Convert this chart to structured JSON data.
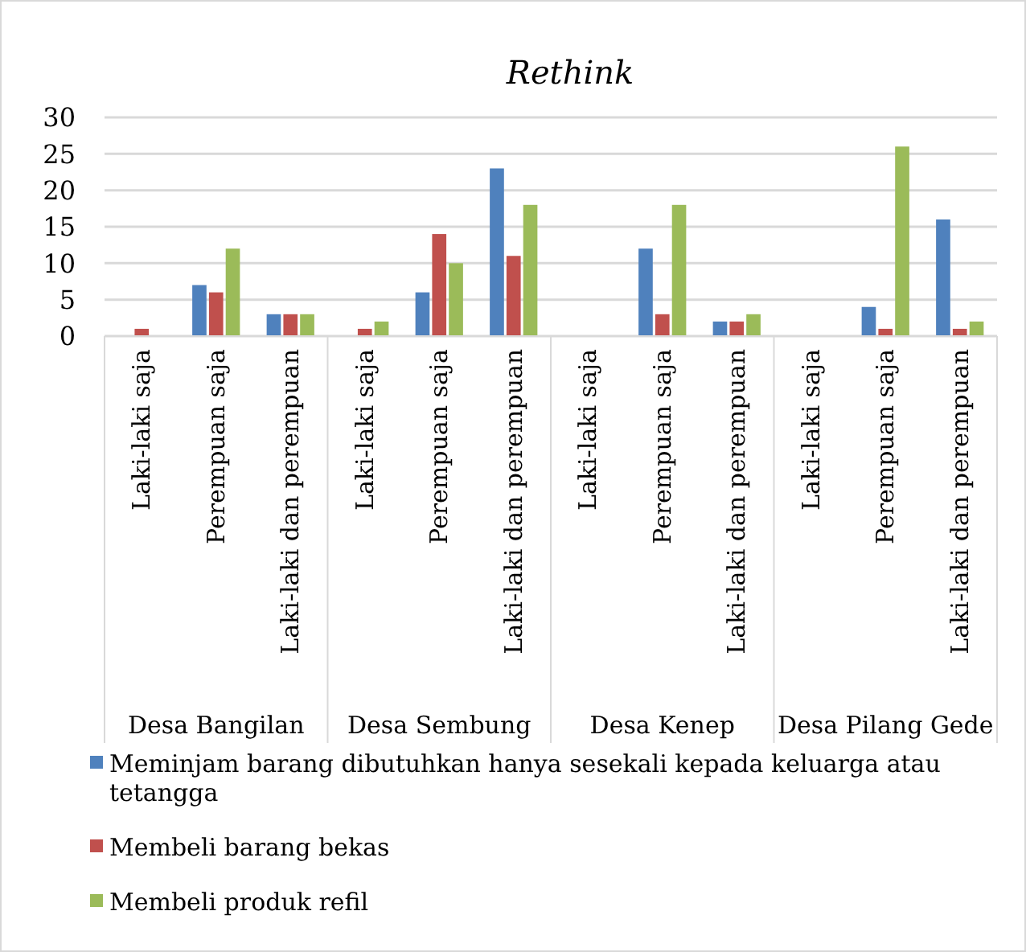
{
  "chart_data": {
    "type": "bar",
    "title": "Rethink",
    "categories": [
      "Laki-laki saja",
      "Perempuan saja",
      "Laki-laki dan perempuan",
      "Laki-laki saja",
      "Perempuan saja",
      "Laki-laki dan perempuan",
      "Laki-laki saja",
      "Perempuan saja",
      "Laki-laki dan perempuan",
      "Laki-laki saja",
      "Perempuan saja",
      "Laki-laki dan perempuan"
    ],
    "annotations": [
      "Desa Bangilan",
      "Desa Sembung",
      "Desa Kenep",
      "Desa Pilang Gede"
    ],
    "series": [
      {
        "name": "Meminjam barang dibutuhkan hanya sesekali kepada keluarga atau tetangga",
        "color": "#4f81bd",
        "values": [
          0,
          7,
          3,
          0,
          6,
          23,
          0,
          12,
          2,
          0,
          4,
          16
        ]
      },
      {
        "name": "Membeli barang bekas",
        "color": "#c0504d",
        "values": [
          1,
          6,
          3,
          1,
          14,
          11,
          0,
          3,
          2,
          0,
          1,
          1
        ]
      },
      {
        "name": "Membeli produk refil",
        "color": "#9bbb59",
        "values": [
          0,
          12,
          3,
          2,
          10,
          18,
          0,
          18,
          3,
          0,
          26,
          2
        ]
      }
    ],
    "ylim": [
      0,
      30
    ],
    "yticks": [
      0,
      5,
      10,
      15,
      20,
      25,
      30
    ],
    "grid": "y",
    "legend": "bottom"
  }
}
